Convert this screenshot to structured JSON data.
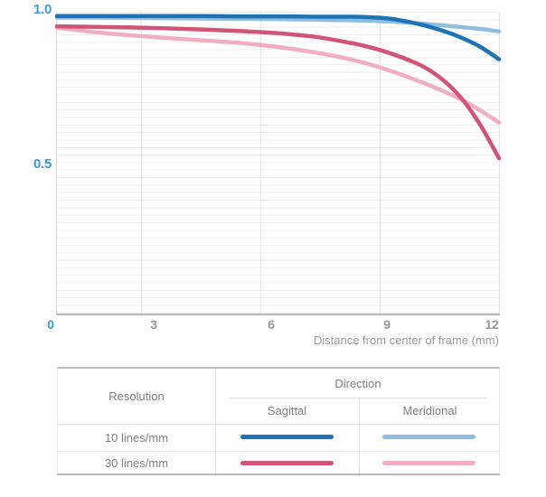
{
  "chart_data": {
    "type": "line",
    "title": "",
    "xlabel": "Distance from center of frame (mm)",
    "ylabel": "",
    "xlim": [
      0,
      12
    ],
    "ylim": [
      0,
      1.0
    ],
    "x_tick_labels": [
      "0",
      "3",
      "6",
      "9",
      "12"
    ],
    "y_tick_labels": [
      "1.0",
      "0.5"
    ],
    "grid": "fine horizontal lines every 0.025, vertical lines every 3 mm",
    "legend_position": "table below chart",
    "series": [
      {
        "name": "10 lines/mm Sagittal",
        "color": "#1e73b4",
        "points": [
          [
            0,
            0.987
          ],
          [
            1,
            0.987
          ],
          [
            2,
            0.987
          ],
          [
            3,
            0.987
          ],
          [
            4,
            0.987
          ],
          [
            5,
            0.986
          ],
          [
            6,
            0.986
          ],
          [
            7,
            0.985
          ],
          [
            8,
            0.985
          ],
          [
            8.5,
            0.983
          ],
          [
            9,
            0.979
          ],
          [
            9.5,
            0.969
          ],
          [
            10,
            0.955
          ],
          [
            10.5,
            0.937
          ],
          [
            11,
            0.914
          ],
          [
            11.5,
            0.884
          ],
          [
            12,
            0.843
          ]
        ]
      },
      {
        "name": "10 lines/mm Meridional",
        "color": "#8fbede",
        "points": [
          [
            0,
            0.982
          ],
          [
            1,
            0.982
          ],
          [
            2,
            0.981
          ],
          [
            3,
            0.98
          ],
          [
            4,
            0.979
          ],
          [
            5,
            0.978
          ],
          [
            6,
            0.977
          ],
          [
            7,
            0.975
          ],
          [
            8,
            0.973
          ],
          [
            9,
            0.969
          ],
          [
            10,
            0.961
          ],
          [
            10.5,
            0.956
          ],
          [
            11,
            0.95
          ],
          [
            11.5,
            0.944
          ],
          [
            12,
            0.936
          ]
        ]
      },
      {
        "name": "30 lines/mm Sagittal",
        "color": "#d25577",
        "points": [
          [
            0,
            0.953
          ],
          [
            1,
            0.951
          ],
          [
            2,
            0.949
          ],
          [
            3,
            0.946
          ],
          [
            4,
            0.942
          ],
          [
            5,
            0.937
          ],
          [
            6,
            0.93
          ],
          [
            7,
            0.918
          ],
          [
            8,
            0.897
          ],
          [
            8.5,
            0.883
          ],
          [
            9,
            0.865
          ],
          [
            9.5,
            0.843
          ],
          [
            10,
            0.815
          ],
          [
            10.5,
            0.772
          ],
          [
            11,
            0.71
          ],
          [
            11.5,
            0.623
          ],
          [
            12,
            0.513
          ]
        ]
      },
      {
        "name": "30 lines/mm Meridional",
        "color": "#f0aec0",
        "points": [
          [
            0,
            0.948
          ],
          [
            0.5,
            0.941
          ],
          [
            1,
            0.934
          ],
          [
            2,
            0.923
          ],
          [
            3,
            0.914
          ],
          [
            4,
            0.906
          ],
          [
            5,
            0.897
          ],
          [
            6,
            0.884
          ],
          [
            7,
            0.866
          ],
          [
            8,
            0.842
          ],
          [
            9,
            0.807
          ],
          [
            10,
            0.762
          ],
          [
            10.5,
            0.736
          ],
          [
            11,
            0.707
          ],
          [
            11.5,
            0.672
          ],
          [
            12,
            0.632
          ]
        ]
      }
    ]
  },
  "axis": {
    "y_labels": [
      "1.0",
      "0.5"
    ],
    "x_labels": [
      "0",
      "3",
      "6",
      "9",
      "12"
    ],
    "x_title": "Distance from center of frame (mm)"
  },
  "legend": {
    "resolution_header": "Resolution",
    "direction_header": "Direction",
    "col_sagittal": "Sagittal",
    "col_meridional": "Meridional",
    "rows": [
      {
        "label": "10 lines/mm",
        "sagittal_color": "#1e73b4",
        "meridional_color": "#8fbede"
      },
      {
        "label": "30 lines/mm",
        "sagittal_color": "#d25577",
        "meridional_color": "#f0aec0"
      }
    ]
  },
  "colors": {
    "accent_blue_label": "#3d9ad4",
    "tick_gray": "#969696",
    "dark_blue": "#1e73b4",
    "light_blue": "#8fbede",
    "dark_pink": "#d25577",
    "light_pink": "#f0aec0"
  }
}
